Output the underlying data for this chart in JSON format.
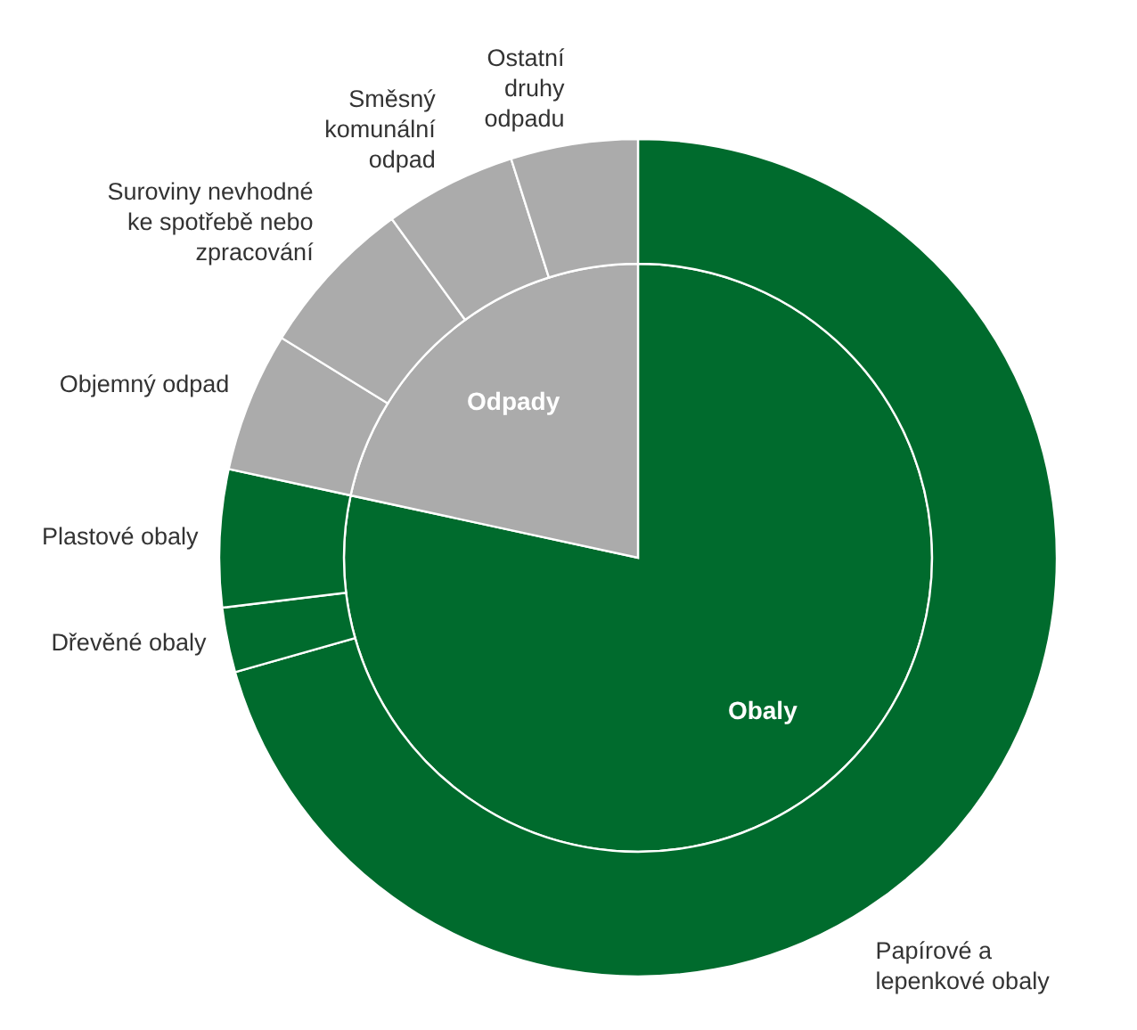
{
  "chart_data": [
    {
      "type": "pie",
      "categories": [
        "Obaly",
        "Odpady"
      ],
      "values": [
        78.4,
        21.6
      ],
      "colors": [
        "#006b2d",
        "#ababab"
      ]
    },
    {
      "type": "donut",
      "categories": [
        "Papírové a lepenkové obaly",
        "Dřevěné obaly",
        "Plastové obaly",
        "Objemný odpad",
        "Suroviny nevhodné ke spotřebě nebo zpracování",
        "Směsný komunální odpad",
        "Ostatní druhy odpadu"
      ],
      "values": [
        70.6,
        2.5,
        5.3,
        5.4,
        6.2,
        5.1,
        4.9
      ],
      "colors": [
        "#006b2d",
        "#006b2d",
        "#006b2d",
        "#ababab",
        "#ababab",
        "#ababab",
        "#ababab"
      ]
    }
  ]
}
